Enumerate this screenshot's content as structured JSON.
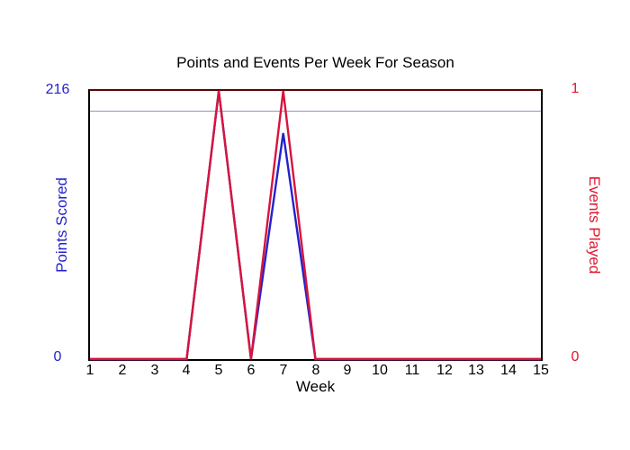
{
  "title": "Points and Events Per Week For Season",
  "colors": {
    "points_blue": "#2222cc",
    "events_red": "#d8143c",
    "red_text": "#e0162c",
    "gridline": "#9494c6",
    "top_border": "#5c0606",
    "axis_border": "#000000"
  },
  "chart_data": {
    "type": "line",
    "title": "Points and Events Per Week For Season",
    "xlabel": "Week",
    "categories": [
      1,
      2,
      3,
      4,
      5,
      6,
      7,
      8,
      9,
      10,
      11,
      12,
      13,
      14,
      15
    ],
    "series": [
      {
        "name": "Points Scored",
        "slug": "points-scored-line",
        "axis": "left",
        "color": "#2222cc",
        "values": [
          0,
          0,
          0,
          0,
          216,
          0,
          182,
          0,
          0,
          0,
          0,
          0,
          0,
          0,
          0
        ]
      },
      {
        "name": "Events Played",
        "slug": "events-played-line",
        "axis": "right",
        "color": "#d8143c",
        "values": [
          0,
          0,
          0,
          0,
          1,
          0,
          1,
          0,
          0,
          0,
          0,
          0,
          0,
          0,
          0
        ]
      }
    ],
    "y_left": {
      "label": "Points Scored",
      "min": 0,
      "max": 216,
      "tick_max": "216",
      "tick_min": "0"
    },
    "y_right": {
      "label": "Events Played",
      "min": 0,
      "max": 1,
      "tick_max": "1",
      "tick_min": "0"
    },
    "gridline_value": 200,
    "legend": "none",
    "grid": "single-horizontal"
  }
}
